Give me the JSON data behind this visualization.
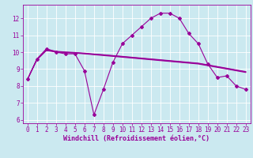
{
  "background_color": "#cbe9f0",
  "grid_color": "#ffffff",
  "line_color": "#990099",
  "xlabel": "Windchill (Refroidissement éolien,°C)",
  "xlabel_fontsize": 6.0,
  "tick_fontsize": 5.5,
  "ylim": [
    5.8,
    12.8
  ],
  "xlim": [
    -0.5,
    23.5
  ],
  "yticks": [
    6,
    7,
    8,
    9,
    10,
    11,
    12
  ],
  "xticks": [
    0,
    1,
    2,
    3,
    4,
    5,
    6,
    7,
    8,
    9,
    10,
    11,
    12,
    13,
    14,
    15,
    16,
    17,
    18,
    19,
    20,
    21,
    22,
    23
  ],
  "series": [
    {
      "x": [
        0,
        1,
        2,
        3,
        4,
        5,
        6,
        7,
        8,
        9,
        10,
        11,
        12,
        13,
        14,
        15,
        16,
        17,
        18,
        19,
        20,
        21,
        22,
        23
      ],
      "y": [
        8.4,
        9.6,
        10.2,
        10.0,
        9.9,
        9.9,
        8.9,
        6.3,
        7.8,
        9.4,
        10.5,
        11.0,
        11.5,
        12.0,
        12.3,
        12.3,
        12.0,
        11.1,
        10.5,
        9.3,
        8.5,
        8.6,
        8.0,
        7.8
      ],
      "marker": "D",
      "markersize": 2.0,
      "linewidth": 0.8
    },
    {
      "x": [
        0,
        1,
        2,
        3,
        4,
        5,
        6,
        7,
        8,
        9,
        10,
        11,
        12,
        13,
        14,
        15,
        16,
        17,
        18,
        19,
        20,
        21,
        22,
        23
      ],
      "y": [
        8.4,
        9.55,
        10.1,
        10.0,
        9.97,
        9.94,
        9.9,
        9.85,
        9.8,
        9.75,
        9.7,
        9.65,
        9.6,
        9.55,
        9.5,
        9.45,
        9.4,
        9.35,
        9.3,
        9.2,
        9.1,
        9.0,
        8.9,
        8.8
      ],
      "marker": null,
      "markersize": 0,
      "linewidth": 0.8
    },
    {
      "x": [
        0,
        1,
        2,
        3,
        4,
        5,
        6,
        7,
        8,
        9,
        10,
        11,
        12,
        13,
        14,
        15,
        16,
        17,
        18,
        19,
        20,
        21,
        22,
        23
      ],
      "y": [
        8.4,
        9.58,
        10.13,
        10.03,
        9.99,
        9.96,
        9.92,
        9.87,
        9.83,
        9.78,
        9.73,
        9.68,
        9.63,
        9.58,
        9.53,
        9.48,
        9.43,
        9.38,
        9.33,
        9.23,
        9.13,
        9.03,
        8.93,
        8.83
      ],
      "marker": null,
      "markersize": 0,
      "linewidth": 0.8
    },
    {
      "x": [
        0,
        1,
        2,
        3,
        4,
        5,
        6,
        7,
        8,
        9,
        10,
        11,
        12,
        13,
        14,
        15,
        16,
        17,
        18,
        19,
        20,
        21,
        22,
        23
      ],
      "y": [
        8.4,
        9.6,
        10.18,
        10.05,
        10.01,
        9.98,
        9.94,
        9.89,
        9.85,
        9.8,
        9.75,
        9.7,
        9.65,
        9.6,
        9.55,
        9.5,
        9.45,
        9.4,
        9.35,
        9.25,
        9.15,
        9.05,
        8.95,
        8.85
      ],
      "marker": null,
      "markersize": 0,
      "linewidth": 0.8
    }
  ]
}
